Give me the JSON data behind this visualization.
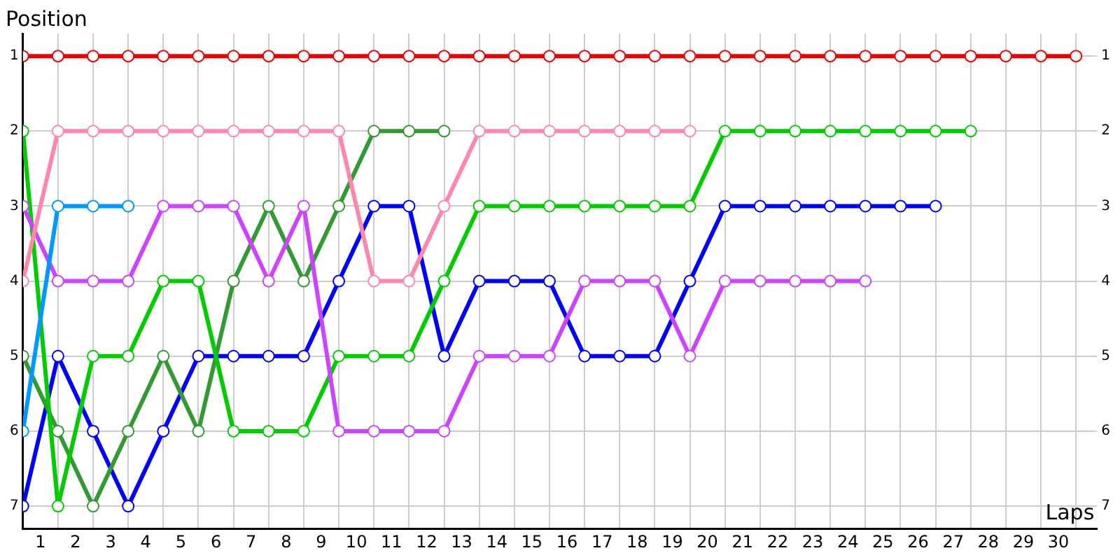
{
  "chart_data": {
    "type": "line",
    "xlabel": "Laps",
    "ylabel": "Position",
    "x": [
      0,
      1,
      2,
      3,
      4,
      5,
      6,
      7,
      8,
      9,
      10,
      11,
      12,
      13,
      14,
      15,
      16,
      17,
      18,
      19,
      20,
      21,
      22,
      23,
      24,
      25,
      26,
      27,
      28,
      29,
      30
    ],
    "series": [
      {
        "color": "#ee0000",
        "values": [
          1,
          1,
          1,
          1,
          1,
          1,
          1,
          1,
          1,
          1,
          1,
          1,
          1,
          1,
          1,
          1,
          1,
          1,
          1,
          1,
          1,
          1,
          1,
          1,
          1,
          1,
          1,
          1,
          1,
          1,
          1
        ]
      },
      {
        "color": "#ff88aa",
        "values": [
          4,
          2,
          2,
          2,
          2,
          2,
          2,
          2,
          2,
          2,
          4,
          4,
          3,
          2,
          2,
          2,
          2,
          2,
          2,
          2,
          null,
          null,
          null,
          null,
          null,
          null,
          null,
          null,
          null,
          null,
          null
        ]
      },
      {
        "color": "#0099ff",
        "values": [
          6,
          3,
          3,
          3,
          null,
          null,
          null,
          null,
          null,
          null,
          null,
          null,
          null,
          null,
          null,
          null,
          null,
          null,
          null,
          null,
          null,
          null,
          null,
          null,
          null,
          null,
          null,
          null,
          null,
          null,
          null
        ]
      },
      {
        "color": "#cc44ff",
        "values": [
          3,
          4,
          4,
          4,
          3,
          3,
          3,
          4,
          3,
          6,
          6,
          6,
          6,
          5,
          5,
          5,
          4,
          4,
          4,
          5,
          4,
          4,
          4,
          4,
          4,
          null,
          null,
          null,
          null,
          null,
          null
        ]
      },
      {
        "color": "#00cc00",
        "values": [
          2,
          7,
          5,
          5,
          4,
          4,
          6,
          6,
          6,
          5,
          5,
          5,
          4,
          3,
          3,
          3,
          3,
          3,
          3,
          3,
          2,
          2,
          2,
          2,
          2,
          2,
          2,
          2,
          null,
          null,
          null
        ]
      },
      {
        "color": "#339933",
        "values": [
          5,
          6,
          7,
          6,
          5,
          6,
          4,
          3,
          4,
          3,
          2,
          2,
          2,
          null,
          null,
          null,
          null,
          null,
          null,
          null,
          null,
          null,
          null,
          null,
          null,
          null,
          null,
          null,
          null,
          null,
          null
        ]
      },
      {
        "color": "#0000ff",
        "values": [
          7,
          5,
          6,
          7,
          6,
          5,
          5,
          5,
          5,
          4,
          3,
          3,
          5,
          4,
          4,
          4,
          5,
          5,
          5,
          4,
          3,
          3,
          3,
          3,
          3,
          3,
          3,
          null,
          null,
          null,
          null
        ]
      }
    ],
    "xlim": [
      0,
      30.6
    ],
    "xticks": [
      {
        "value": 0,
        "label": null
      },
      {
        "value": 0.5,
        "label": "1"
      },
      {
        "value": 1,
        "label": null
      },
      {
        "value": 1.5,
        "label": "2"
      },
      {
        "value": 2,
        "label": null
      },
      {
        "value": 2.5,
        "label": "3"
      },
      {
        "value": 3,
        "label": null
      },
      {
        "value": 3.5,
        "label": "4"
      },
      {
        "value": 4,
        "label": null
      },
      {
        "value": 4.5,
        "label": "5"
      },
      {
        "value": 5,
        "label": null
      },
      {
        "value": 5.5,
        "label": "6"
      },
      {
        "value": 6,
        "label": null
      },
      {
        "value": 6.5,
        "label": "7"
      },
      {
        "value": 7,
        "label": null
      },
      {
        "value": 7.5,
        "label": "8"
      },
      {
        "value": 8,
        "label": null
      },
      {
        "value": 8.5,
        "label": "9"
      },
      {
        "value": 9,
        "label": null
      },
      {
        "value": 9.5,
        "label": "10"
      },
      {
        "value": 10,
        "label": null
      },
      {
        "value": 10.5,
        "label": "11"
      },
      {
        "value": 11,
        "label": null
      },
      {
        "value": 11.5,
        "label": "12"
      },
      {
        "value": 12,
        "label": null
      },
      {
        "value": 12.5,
        "label": "13"
      },
      {
        "value": 13,
        "label": null
      },
      {
        "value": 13.5,
        "label": "14"
      },
      {
        "value": 14,
        "label": null
      },
      {
        "value": 14.5,
        "label": "15"
      },
      {
        "value": 15,
        "label": null
      },
      {
        "value": 15.5,
        "label": "16"
      },
      {
        "value": 16,
        "label": null
      },
      {
        "value": 16.5,
        "label": "17"
      },
      {
        "value": 17,
        "label": null
      },
      {
        "value": 17.5,
        "label": "18"
      },
      {
        "value": 18,
        "label": null
      },
      {
        "value": 18.5,
        "label": "19"
      },
      {
        "value": 19,
        "label": null
      },
      {
        "value": 19.5,
        "label": "20"
      },
      {
        "value": 20,
        "label": null
      },
      {
        "value": 20.5,
        "label": "21"
      },
      {
        "value": 21,
        "label": null
      },
      {
        "value": 21.5,
        "label": "22"
      },
      {
        "value": 22,
        "label": null
      },
      {
        "value": 22.5,
        "label": "23"
      },
      {
        "value": 23,
        "label": null
      },
      {
        "value": 23.5,
        "label": "24"
      },
      {
        "value": 24,
        "label": null
      },
      {
        "value": 24.5,
        "label": "25"
      },
      {
        "value": 25,
        "label": null
      },
      {
        "value": 25.5,
        "label": "26"
      },
      {
        "value": 26,
        "label": null
      },
      {
        "value": 26.5,
        "label": "27"
      },
      {
        "value": 27,
        "label": null
      },
      {
        "value": 27.5,
        "label": "28"
      },
      {
        "value": 28,
        "label": null
      },
      {
        "value": 28.5,
        "label": "29"
      },
      {
        "value": 29,
        "label": null
      },
      {
        "value": 29.5,
        "label": "30"
      },
      {
        "value": 30,
        "label": null
      }
    ],
    "ylim": [
      7.3,
      0.7
    ],
    "yticks": [
      1,
      2,
      3,
      4,
      5,
      6,
      7
    ],
    "y2lim": [
      7.3,
      0.7
    ],
    "y2ticks": [
      1,
      2,
      3,
      4,
      5,
      6,
      7
    ],
    "grid": true,
    "legend": false,
    "marker": "circle",
    "line_style": "solid"
  }
}
